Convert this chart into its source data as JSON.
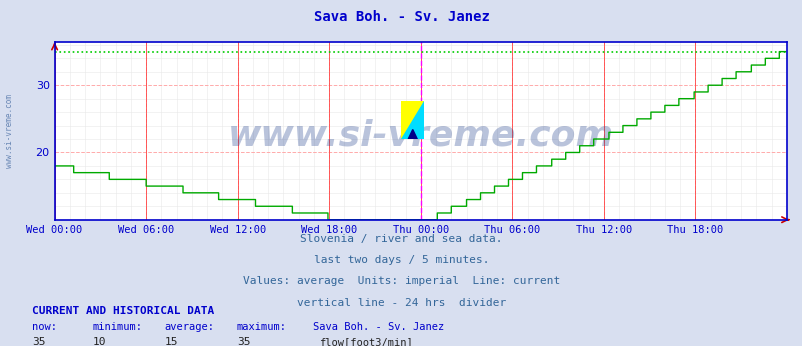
{
  "title": "Sava Boh. - Sv. Janez",
  "title_color": "#0000cc",
  "title_fontsize": 10,
  "bg_color": "#d8dff0",
  "plot_bg_color": "#ffffff",
  "grid_major_color": "#ffaaaa",
  "grid_minor_color": "#e8e8e8",
  "line_color": "#00aa00",
  "dotted_max_color": "#00cc00",
  "vline_color": "#ff00ff",
  "red_vline_color": "#ff4444",
  "ymin": 10,
  "ymax": 36,
  "yticks": [
    20,
    30
  ],
  "tick_color": "#0000cc",
  "spine_color": "#0000cc",
  "watermark": "www.si-vreme.com",
  "watermark_color": "#1a3a8a",
  "watermark_alpha": 0.3,
  "watermark_fontsize": 26,
  "subtitle_lines": [
    "Slovenia / river and sea data.",
    "last two days / 5 minutes.",
    "Values: average  Units: imperial  Line: current",
    "vertical line - 24 hrs  divider"
  ],
  "subtitle_color": "#336699",
  "subtitle_fontsize": 8,
  "footer_header": "CURRENT AND HISTORICAL DATA",
  "footer_header_color": "#0000cc",
  "footer_labels": [
    "now:",
    "minimum:",
    "average:",
    "maximum:",
    "Sava Boh. - Sv. Janez"
  ],
  "footer_values": [
    "35",
    "10",
    "15",
    "35"
  ],
  "footer_legend_label": "flow[foot3/min]",
  "footer_legend_color": "#00aa00",
  "x_tick_labels": [
    "Wed 00:00",
    "Wed 06:00",
    "Wed 12:00",
    "Wed 18:00",
    "Thu 00:00",
    "Thu 06:00",
    "Thu 12:00",
    "Thu 18:00"
  ],
  "x_tick_positions": [
    0,
    72,
    144,
    216,
    288,
    360,
    432,
    504
  ],
  "total_points": 576,
  "vline_pos": 288,
  "max_line_y": 35,
  "arrow_color": "#cc0000",
  "side_text": "www.si-vreme.com",
  "side_text_color": "#5577aa"
}
